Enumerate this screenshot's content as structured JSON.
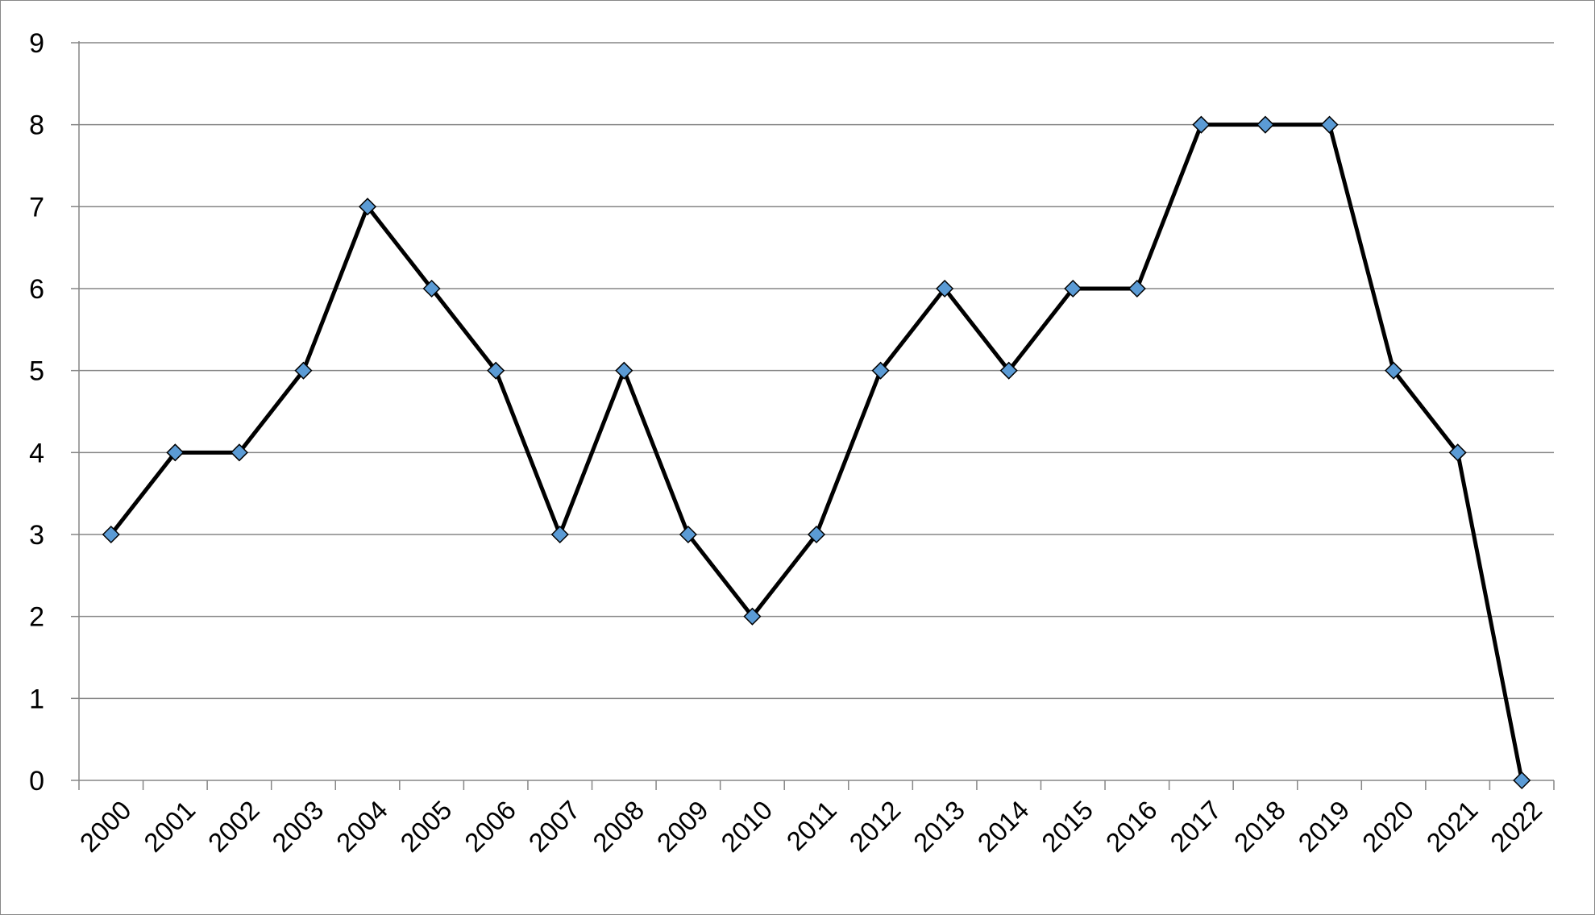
{
  "chart_data": {
    "type": "line",
    "title": "",
    "xlabel": "",
    "ylabel": "",
    "categories": [
      "2000",
      "2001",
      "2002",
      "2003",
      "2004",
      "2005",
      "2006",
      "2007",
      "2008",
      "2009",
      "2010",
      "2011",
      "2012",
      "2013",
      "2014",
      "2015",
      "2016",
      "2017",
      "2018",
      "2019",
      "2020",
      "2021",
      "2022"
    ],
    "values": [
      3,
      4,
      4,
      5,
      7,
      6,
      5,
      3,
      5,
      3,
      2,
      3,
      5,
      6,
      5,
      6,
      6,
      8,
      8,
      8,
      5,
      4,
      0
    ],
    "ylim": [
      0,
      9
    ],
    "yticks": [
      0,
      1,
      2,
      3,
      4,
      5,
      6,
      7,
      8,
      9
    ],
    "grid": true,
    "legend": "none",
    "line_color": "#000000",
    "marker": "diamond",
    "marker_color": "#5B9BD5",
    "grid_color": "#868686"
  }
}
